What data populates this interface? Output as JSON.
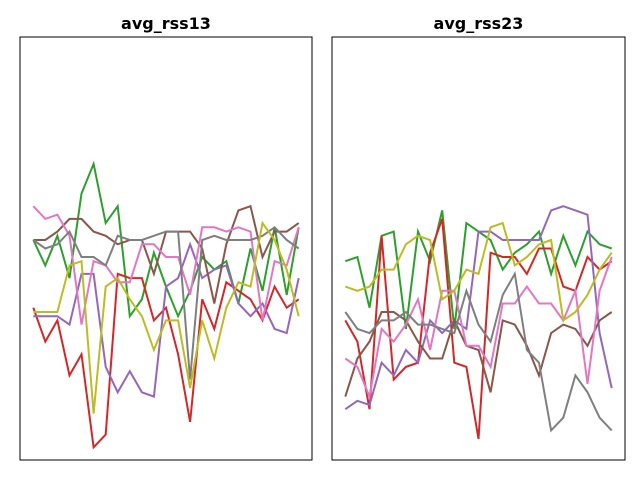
{
  "chart_data": [
    {
      "type": "line",
      "title": "avg_rss13",
      "x": [
        0,
        1,
        2,
        3,
        4,
        5,
        6,
        7,
        8,
        9,
        10,
        11,
        12,
        13,
        14,
        15,
        16,
        17,
        18,
        19,
        20,
        21,
        22
      ],
      "xlim": [
        -1.1,
        23.1
      ],
      "ylim": [
        0,
        100
      ],
      "series": [
        {
          "name": "green",
          "color": "#2ca02c",
          "values": [
            52,
            46,
            53,
            43,
            63,
            70,
            56,
            60,
            34,
            38,
            49,
            41,
            34,
            40,
            48,
            45,
            47,
            37,
            50,
            40,
            55,
            39,
            55
          ]
        },
        {
          "name": "red",
          "color": "#d62728",
          "values": [
            36,
            28,
            33,
            20,
            25,
            3,
            6,
            44,
            43,
            43,
            33,
            36,
            25,
            9,
            38,
            31,
            42,
            40,
            38,
            33,
            41,
            36,
            38
          ]
        },
        {
          "name": "purple",
          "color": "#9467bd",
          "values": [
            34,
            34,
            34,
            32,
            44,
            44,
            22,
            16,
            21,
            16,
            15,
            41,
            43,
            51,
            43,
            45,
            46,
            37,
            34,
            37,
            31,
            30,
            43
          ]
        },
        {
          "name": "brown",
          "color": "#8c564b",
          "values": [
            52,
            52,
            54,
            57,
            57,
            54,
            53,
            51,
            52,
            52,
            44,
            54,
            54,
            54,
            50,
            37,
            51,
            59,
            60,
            48,
            54,
            54,
            56
          ]
        },
        {
          "name": "pink",
          "color": "#e377c2",
          "values": [
            60,
            57,
            58,
            53,
            32,
            47,
            46,
            42,
            42,
            51,
            51,
            48,
            48,
            39,
            55,
            55,
            54,
            55,
            54,
            33,
            47,
            46,
            55
          ]
        },
        {
          "name": "gray",
          "color": "#7f7f7f",
          "values": [
            52,
            50,
            51,
            54,
            48,
            48,
            46,
            53,
            52,
            52,
            53,
            54,
            54,
            19,
            52,
            53,
            52,
            52,
            52,
            53,
            55,
            52,
            50
          ]
        },
        {
          "name": "olive",
          "color": "#bcbd22",
          "values": [
            35,
            35,
            35,
            46,
            47,
            11,
            41,
            43,
            38,
            34,
            26,
            33,
            33,
            17,
            33,
            24,
            36,
            42,
            41,
            56,
            52,
            45,
            34
          ]
        }
      ]
    },
    {
      "type": "line",
      "title": "avg_rss23",
      "x": [
        0,
        1,
        2,
        3,
        4,
        5,
        6,
        7,
        8,
        9,
        10,
        11,
        12,
        13,
        14,
        15,
        16,
        17,
        18,
        19,
        20,
        21,
        22
      ],
      "xlim": [
        -1.1,
        23.1
      ],
      "ylim": [
        0,
        100
      ],
      "series": [
        {
          "name": "green",
          "color": "#2ca02c",
          "values": [
            47,
            48,
            36,
            53,
            54,
            31,
            54,
            47,
            59,
            31,
            56,
            54,
            52,
            45,
            49,
            51,
            54,
            44,
            53,
            46,
            54,
            51,
            50
          ]
        },
        {
          "name": "red",
          "color": "#d62728",
          "values": [
            33,
            28,
            12,
            53,
            19,
            22,
            23,
            49,
            57,
            23,
            22,
            5,
            49,
            48,
            48,
            44,
            50,
            50,
            41,
            40,
            48,
            45,
            47
          ]
        },
        {
          "name": "purple",
          "color": "#9467bd",
          "values": [
            12,
            14,
            13,
            23,
            20,
            26,
            23,
            33,
            30,
            33,
            31,
            54,
            54,
            52,
            52,
            52,
            52,
            59,
            60,
            59,
            58,
            30,
            17
          ]
        },
        {
          "name": "brown",
          "color": "#8c564b",
          "values": [
            15,
            24,
            28,
            35,
            35,
            33,
            28,
            24,
            24,
            33,
            27,
            26,
            16,
            33,
            32,
            27,
            20,
            30,
            32,
            31,
            27,
            33,
            35
          ]
        },
        {
          "name": "pink",
          "color": "#e377c2",
          "values": [
            24,
            22,
            15,
            31,
            28,
            32,
            38,
            26,
            40,
            40,
            27,
            27,
            22,
            37,
            37,
            41,
            37,
            37,
            33,
            40,
            18,
            40,
            48
          ]
        },
        {
          "name": "gray",
          "color": "#7f7f7f",
          "values": [
            35,
            31,
            30,
            33,
            33,
            35,
            32,
            32,
            31,
            30,
            40,
            32,
            28,
            39,
            44,
            26,
            23,
            7,
            10,
            20,
            16,
            10,
            7
          ]
        },
        {
          "name": "olive",
          "color": "#bcbd22",
          "values": [
            41,
            40,
            41,
            45,
            45,
            51,
            53,
            52,
            38,
            40,
            45,
            44,
            55,
            56,
            46,
            48,
            51,
            52,
            33,
            35,
            39,
            45,
            49
          ]
        }
      ]
    }
  ]
}
